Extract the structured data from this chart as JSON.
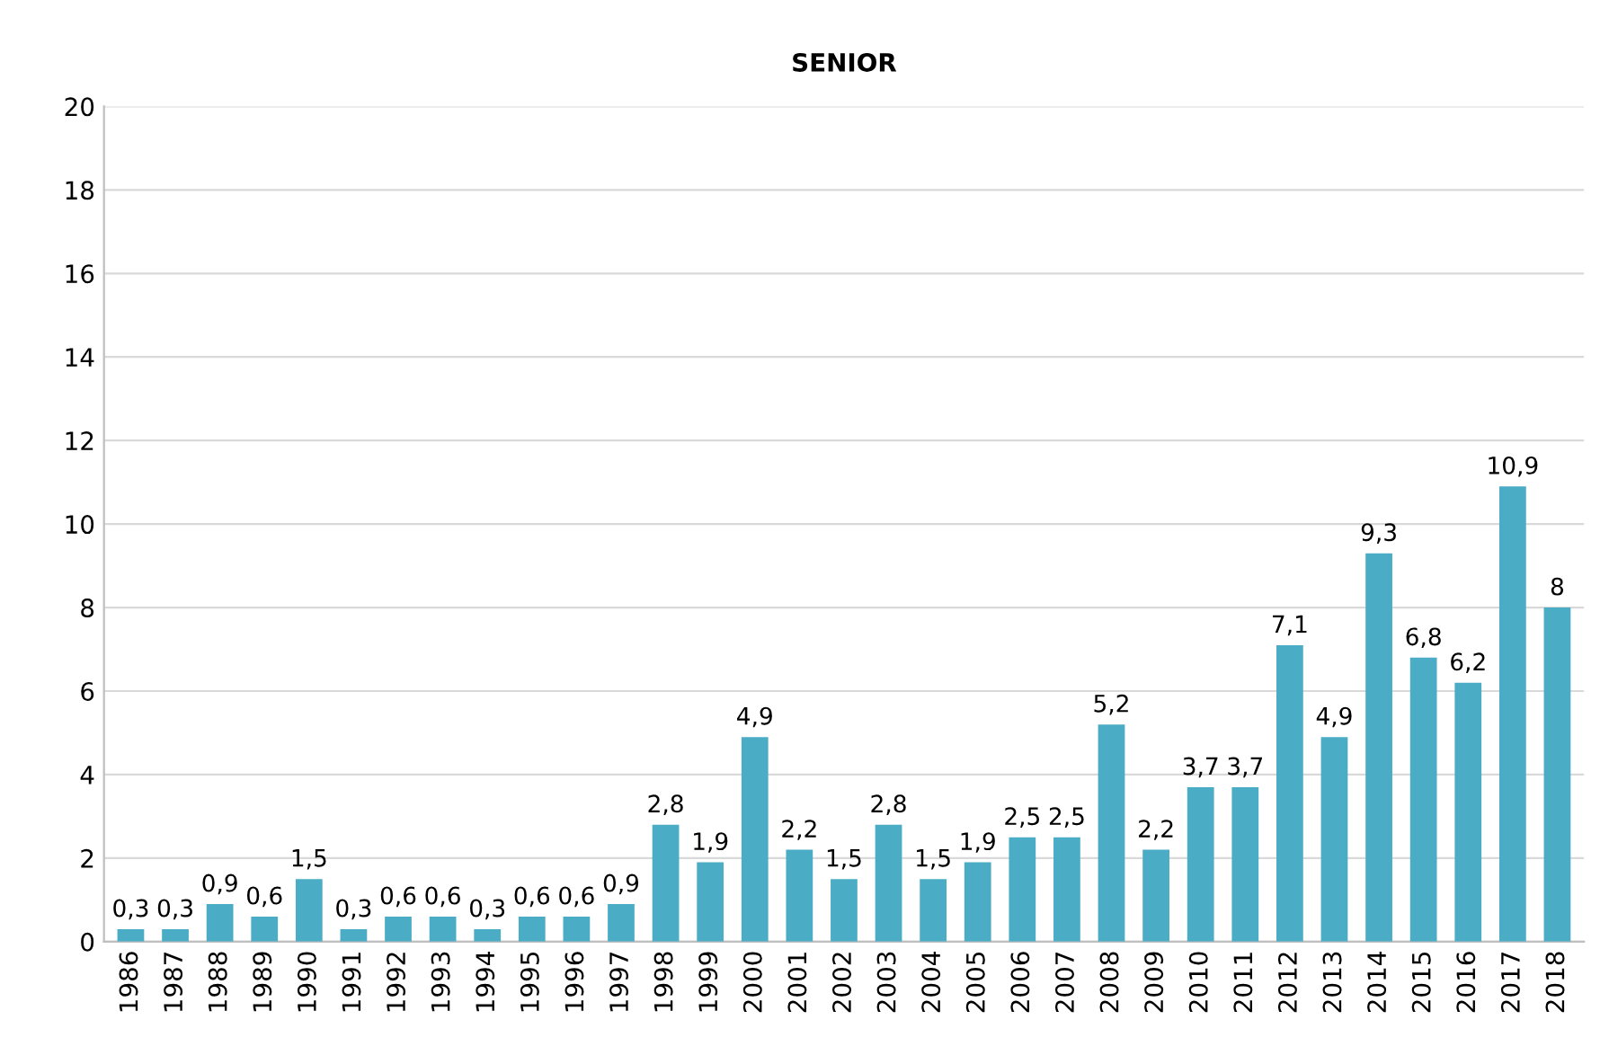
{
  "chart_data": {
    "type": "bar",
    "title": "SENIOR",
    "categories": [
      "1986",
      "1987",
      "1988",
      "1989",
      "1990",
      "1991",
      "1992",
      "1993",
      "1994",
      "1995",
      "1996",
      "1997",
      "1998",
      "1999",
      "2000",
      "2001",
      "2002",
      "2003",
      "2004",
      "2005",
      "2006",
      "2007",
      "2008",
      "2009",
      "2010",
      "2011",
      "2012",
      "2013",
      "2014",
      "2015",
      "2016",
      "2017",
      "2018"
    ],
    "values": [
      0.3,
      0.3,
      0.9,
      0.6,
      1.5,
      0.3,
      0.6,
      0.6,
      0.3,
      0.6,
      0.6,
      0.9,
      2.8,
      1.9,
      4.9,
      2.2,
      1.5,
      2.8,
      1.5,
      1.9,
      2.5,
      2.5,
      5.2,
      2.2,
      3.7,
      3.7,
      7.1,
      4.9,
      9.3,
      6.8,
      6.2,
      10.9,
      8
    ],
    "value_labels": [
      "0,3",
      "0,3",
      "0,9",
      "0,6",
      "1,5",
      "0,3",
      "0,6",
      "0,6",
      "0,3",
      "0,6",
      "0,6",
      "0,9",
      "2,8",
      "1,9",
      "4,9",
      "2,2",
      "1,5",
      "2,8",
      "1,5",
      "1,9",
      "2,5",
      "2,5",
      "5,2",
      "2,2",
      "3,7",
      "3,7",
      "7,1",
      "4,9",
      "9,3",
      "6,8",
      "6,2",
      "10,9",
      "8"
    ],
    "color": "#4bacc6",
    "ylim": [
      0,
      20
    ],
    "yticks": [
      0,
      2,
      4,
      6,
      8,
      10,
      12,
      14,
      16,
      18,
      20
    ],
    "grid": "y",
    "legend": false
  }
}
